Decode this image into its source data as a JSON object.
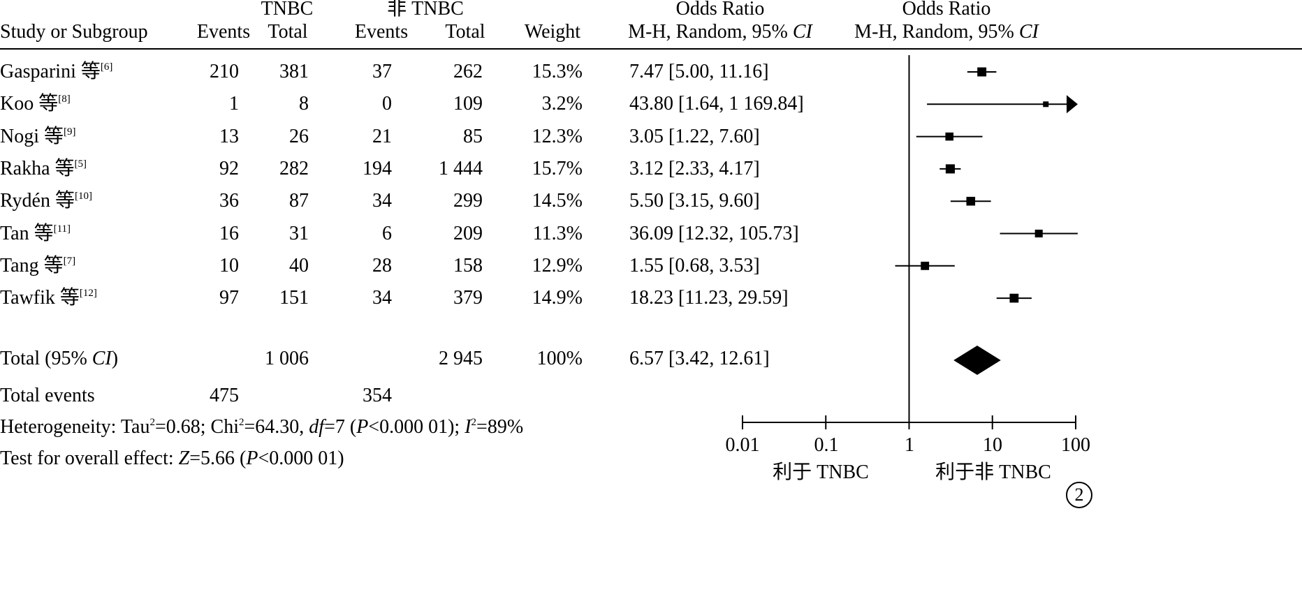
{
  "header": {
    "tnbc_group": "TNBC",
    "non_tnbc_group": "非 TNBC",
    "study_col": "Study or Subgroup",
    "events": "Events",
    "total": "Total",
    "weight": "Weight",
    "or_title": "Odds Ratio",
    "or_method_prefix": "M-H, Random, 95% ",
    "or_method_ci": "CI"
  },
  "studies": [
    {
      "name": "Gasparini 等",
      "ref": "[6]",
      "tnbc_events": "210",
      "tnbc_total": "381",
      "non_events": "37",
      "non_total": "262",
      "weight": "15.3%",
      "ci_text": "7.47 [5.00, 11.16]"
    },
    {
      "name": "Koo 等",
      "ref": "[8]",
      "tnbc_events": "1",
      "tnbc_total": "8",
      "non_events": "0",
      "non_total": "109",
      "weight": "3.2%",
      "ci_text": "43.80 [1.64, 1 169.84]"
    },
    {
      "name": "Nogi 等",
      "ref": "[9]",
      "tnbc_events": "13",
      "tnbc_total": "26",
      "non_events": "21",
      "non_total": "85",
      "weight": "12.3%",
      "ci_text": "3.05 [1.22, 7.60]"
    },
    {
      "name": "Rakha 等",
      "ref": "[5]",
      "tnbc_events": "92",
      "tnbc_total": "282",
      "non_events": "194",
      "non_total": "1 444",
      "weight": "15.7%",
      "ci_text": "3.12 [2.33, 4.17]"
    },
    {
      "name": "Rydén 等",
      "ref": "[10]",
      "tnbc_events": "36",
      "tnbc_total": "87",
      "non_events": "34",
      "non_total": "299",
      "weight": "14.5%",
      "ci_text": "5.50 [3.15, 9.60]"
    },
    {
      "name": "Tan 等",
      "ref": "[11]",
      "tnbc_events": "16",
      "tnbc_total": "31",
      "non_events": "6",
      "non_total": "209",
      "weight": "11.3%",
      "ci_text": "36.09 [12.32, 105.73]"
    },
    {
      "name": "Tang 等",
      "ref": "[7]",
      "tnbc_events": "10",
      "tnbc_total": "40",
      "non_events": "28",
      "non_total": "158",
      "weight": "12.9%",
      "ci_text": "1.55 [0.68, 3.53]"
    },
    {
      "name": "Tawfik 等",
      "ref": "[12]",
      "tnbc_events": "97",
      "tnbc_total": "151",
      "non_events": "34",
      "non_total": "379",
      "weight": "14.9%",
      "ci_text": "18.23 [11.23, 29.59]"
    }
  ],
  "total_row": {
    "label_prefix": "Total (95% ",
    "label_ci": "CI",
    "label_suffix": ")",
    "tnbc_total": "1 006",
    "non_total": "2 945",
    "weight": "100%",
    "ci_text": "6.57 [3.42, 12.61]"
  },
  "events_row": {
    "label": "Total events",
    "tnbc_events": "475",
    "non_events": "354"
  },
  "heterogeneity": {
    "p1": "Heterogeneity: Tau",
    "sup1": "2",
    "p2": "=0.68; Chi",
    "sup2": "2",
    "p3": "=64.30, ",
    "df": "df",
    "p4": "=7 (",
    "P": "P",
    "p5": "<0.000 01); ",
    "I": "I",
    "sup3": "2",
    "p6": "=89%"
  },
  "overall_effect": {
    "p1": "Test for overall effect: ",
    "Z": "Z",
    "p2": "=5.66 (",
    "P": "P",
    "p3": "<0.000 01)"
  },
  "axis": {
    "ticks": [
      "0.01",
      "0.1",
      "1",
      "10",
      "100"
    ],
    "favours_left": "利于 TNBC",
    "favours_right": "利于非 TNBC"
  },
  "panel_badge": "2",
  "chart_data": {
    "type": "forest",
    "x_scale": "log",
    "xlim": [
      0.01,
      100
    ],
    "x_ticks": [
      0.01,
      0.1,
      1,
      10,
      100
    ],
    "null_line": 1,
    "studies": [
      {
        "name": "Gasparini",
        "or": 7.47,
        "lower": 5.0,
        "upper": 11.16,
        "weight": 15.3
      },
      {
        "name": "Koo",
        "or": 43.8,
        "lower": 1.64,
        "upper": 1169.84,
        "weight": 3.2
      },
      {
        "name": "Nogi",
        "or": 3.05,
        "lower": 1.22,
        "upper": 7.6,
        "weight": 12.3
      },
      {
        "name": "Rakha",
        "or": 3.12,
        "lower": 2.33,
        "upper": 4.17,
        "weight": 15.7
      },
      {
        "name": "Rydén",
        "or": 5.5,
        "lower": 3.15,
        "upper": 9.6,
        "weight": 14.5
      },
      {
        "name": "Tan",
        "or": 36.09,
        "lower": 12.32,
        "upper": 105.73,
        "weight": 11.3
      },
      {
        "name": "Tang",
        "or": 1.55,
        "lower": 0.68,
        "upper": 3.53,
        "weight": 12.9
      },
      {
        "name": "Tawfik",
        "or": 18.23,
        "lower": 11.23,
        "upper": 29.59,
        "weight": 14.9
      }
    ],
    "pooled": {
      "or": 6.57,
      "lower": 3.42,
      "upper": 12.61
    }
  }
}
